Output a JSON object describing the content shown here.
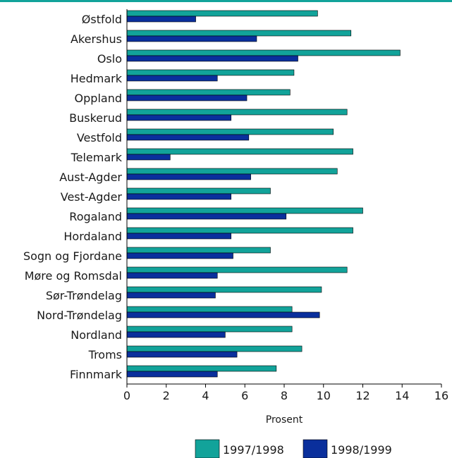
{
  "chart_data": {
    "type": "bar",
    "orientation": "horizontal",
    "categories": [
      "Østfold",
      "Akershus",
      "Oslo",
      "Hedmark",
      "Oppland",
      "Buskerud",
      "Vestfold",
      "Telemark",
      "Aust-Agder",
      "Vest-Agder",
      "Rogaland",
      "Hordaland",
      "Sogn og Fjordane",
      "Møre og Romsdal",
      "Sør-Trøndelag",
      "Nord-Trøndelag",
      "Nordland",
      "Troms",
      "Finnmark"
    ],
    "series": [
      {
        "name": "1997/1998",
        "color": "#12a39a",
        "values": [
          9.7,
          11.4,
          13.9,
          8.5,
          8.3,
          11.2,
          10.5,
          11.5,
          10.7,
          7.3,
          12.0,
          11.5,
          7.3,
          11.2,
          9.9,
          8.4,
          8.4,
          8.9,
          7.6
        ]
      },
      {
        "name": "1998/1999",
        "color": "#0a2f9c",
        "values": [
          3.5,
          6.6,
          8.7,
          4.6,
          6.1,
          5.3,
          6.2,
          2.2,
          6.3,
          5.3,
          8.1,
          5.3,
          5.4,
          4.6,
          4.5,
          9.8,
          5.0,
          5.6,
          4.6
        ]
      }
    ],
    "xlabel": "Prosent",
    "xlim": [
      0,
      16
    ],
    "xticks": [
      0,
      2,
      4,
      6,
      8,
      10,
      12,
      14,
      16
    ],
    "grid": false,
    "legend_position": "bottom"
  },
  "style": {
    "top_rule_color": "#12a39a",
    "axis_color": "#000000"
  }
}
